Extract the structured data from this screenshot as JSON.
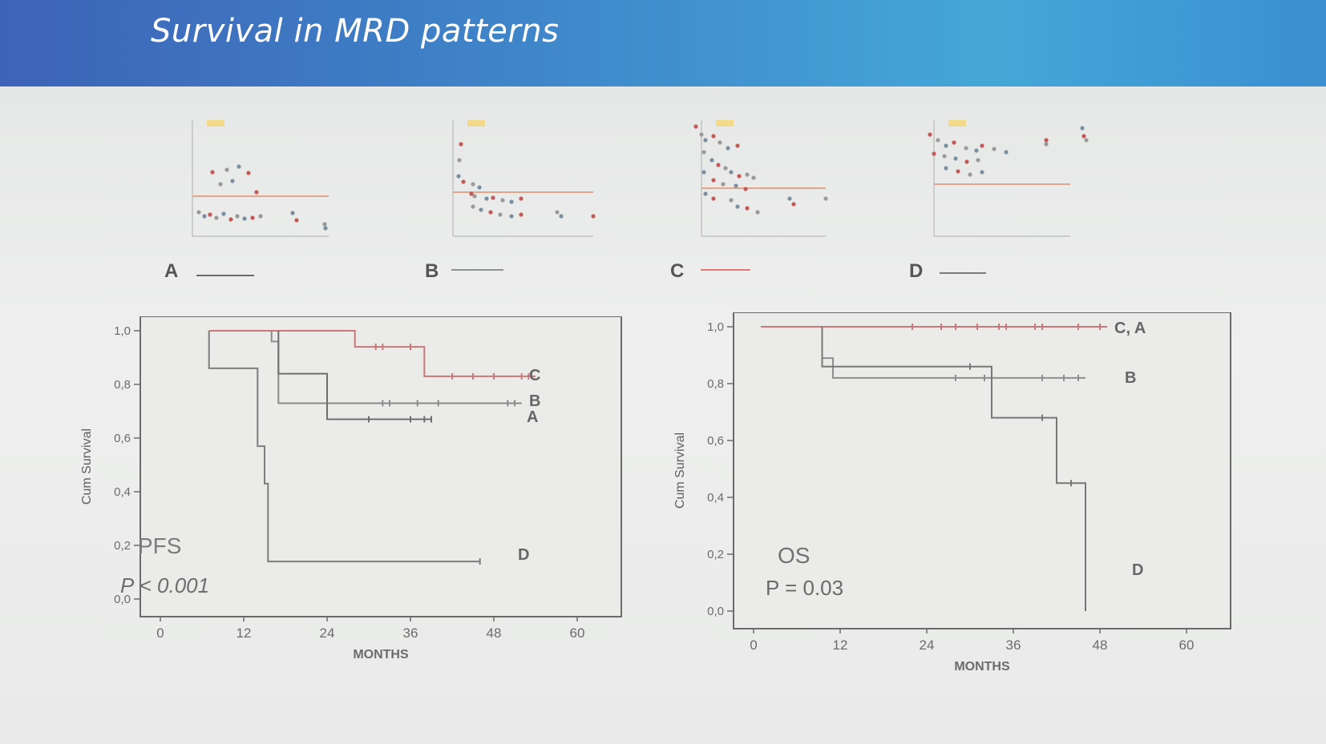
{
  "slide": {
    "title": "Survival in MRD patterns"
  },
  "patterns": [
    {
      "label": "A",
      "line_color": "#6a6a6a"
    },
    {
      "label": "B",
      "line_color": "#8d958d"
    },
    {
      "label": "C",
      "line_color": "#e07a7a"
    },
    {
      "label": "D",
      "line_color": "#7a7a7a"
    }
  ],
  "chart_data": [
    {
      "type": "line",
      "title": "PFS",
      "annotation": "P < 0.001",
      "xlabel": "MONTHS",
      "ylabel": "Cum Survival",
      "xlim": [
        0,
        60
      ],
      "ylim": [
        0,
        1
      ],
      "xticks": [
        0,
        12,
        24,
        36,
        48,
        60
      ],
      "xtick_labels": [
        "0",
        "12",
        "24",
        "36",
        "48",
        "60"
      ],
      "yticks": [
        0,
        0.2,
        0.4,
        0.6,
        0.8,
        1.0
      ],
      "ytick_labels": [
        "0,0",
        "0,2",
        "0,4",
        "0,6",
        "0,8",
        "1,0"
      ],
      "series": [
        {
          "name": "C",
          "color": "#c9787a",
          "steps": [
            [
              7,
              1.0
            ],
            [
              28,
              1.0
            ],
            [
              28,
              0.94
            ],
            [
              38,
              0.94
            ],
            [
              38,
              0.83
            ],
            [
              54,
              0.83
            ]
          ],
          "censors": [
            [
              31,
              0.94
            ],
            [
              32,
              0.94
            ],
            [
              36,
              0.94
            ],
            [
              42,
              0.83
            ],
            [
              45,
              0.83
            ],
            [
              48,
              0.83
            ],
            [
              52,
              0.83
            ],
            [
              53,
              0.83
            ]
          ]
        },
        {
          "name": "B",
          "color": "#8b8b8b",
          "steps": [
            [
              16,
              1.0
            ],
            [
              16,
              0.96
            ],
            [
              17,
              0.96
            ],
            [
              17,
              0.73
            ],
            [
              52,
              0.73
            ]
          ],
          "censors": [
            [
              32,
              0.73
            ],
            [
              33,
              0.73
            ],
            [
              37,
              0.73
            ],
            [
              40,
              0.73
            ],
            [
              50,
              0.73
            ],
            [
              51,
              0.73
            ]
          ]
        },
        {
          "name": "A",
          "color": "#6e6e6e",
          "steps": [
            [
              17,
              1.0
            ],
            [
              17,
              0.84
            ],
            [
              24,
              0.84
            ],
            [
              24,
              0.67
            ],
            [
              39,
              0.67
            ]
          ],
          "censors": [
            [
              30,
              0.67
            ],
            [
              36,
              0.67
            ],
            [
              38,
              0.67
            ],
            [
              39,
              0.67
            ]
          ]
        },
        {
          "name": "D",
          "color": "#7d7d7d",
          "steps": [
            [
              7,
              1.0
            ],
            [
              7,
              0.86
            ],
            [
              14,
              0.86
            ],
            [
              14,
              0.57
            ],
            [
              15,
              0.57
            ],
            [
              15,
              0.43
            ],
            [
              15.5,
              0.43
            ],
            [
              15.5,
              0.14
            ],
            [
              46,
              0.14
            ]
          ],
          "censors": [
            [
              46,
              0.14
            ]
          ]
        }
      ],
      "series_labels": [
        "C",
        "B",
        "A",
        "D"
      ]
    },
    {
      "type": "line",
      "title": "OS",
      "annotation": "P = 0.03",
      "xlabel": "MONTHS",
      "ylabel": "Cum Survival",
      "xlim": [
        0,
        60
      ],
      "ylim": [
        0,
        1
      ],
      "xticks": [
        0,
        12,
        24,
        36,
        48,
        60
      ],
      "xtick_labels": [
        "0",
        "12",
        "24",
        "36",
        "48",
        "60"
      ],
      "yticks": [
        0,
        0.2,
        0.4,
        0.6,
        0.8,
        1.0
      ],
      "ytick_labels": [
        "0,0",
        "0,2",
        "0,4",
        "0,6",
        "0,8",
        "1,0"
      ],
      "series": [
        {
          "name": "C, A",
          "color": "#c9787a",
          "steps": [
            [
              1,
              1.0
            ],
            [
              49,
              1.0
            ]
          ],
          "censors": [
            [
              22,
              1.0
            ],
            [
              26,
              1.0
            ],
            [
              28,
              1.0
            ],
            [
              31,
              1.0
            ],
            [
              34,
              1.0
            ],
            [
              35,
              1.0
            ],
            [
              39,
              1.0
            ],
            [
              40,
              1.0
            ],
            [
              45,
              1.0
            ],
            [
              48,
              1.0
            ]
          ]
        },
        {
          "name": "B",
          "color": "#8e8e8e",
          "steps": [
            [
              9.5,
              1.0
            ],
            [
              9.5,
              0.89
            ],
            [
              11,
              0.89
            ],
            [
              11,
              0.82
            ],
            [
              46,
              0.82
            ]
          ],
          "censors": [
            [
              28,
              0.82
            ],
            [
              32,
              0.82
            ],
            [
              40,
              0.82
            ],
            [
              43,
              0.82
            ],
            [
              45,
              0.82
            ]
          ]
        },
        {
          "name": "D",
          "color": "#777777",
          "steps": [
            [
              9.5,
              1.0
            ],
            [
              9.5,
              0.86
            ],
            [
              33,
              0.86
            ],
            [
              33,
              0.68
            ],
            [
              42,
              0.68
            ],
            [
              42,
              0.45
            ],
            [
              46,
              0.45
            ],
            [
              46,
              0.0
            ]
          ],
          "censors": [
            [
              30,
              0.86
            ],
            [
              40,
              0.68
            ],
            [
              44,
              0.45
            ]
          ]
        }
      ],
      "series_labels": [
        "C, A",
        "B",
        "D"
      ]
    }
  ]
}
